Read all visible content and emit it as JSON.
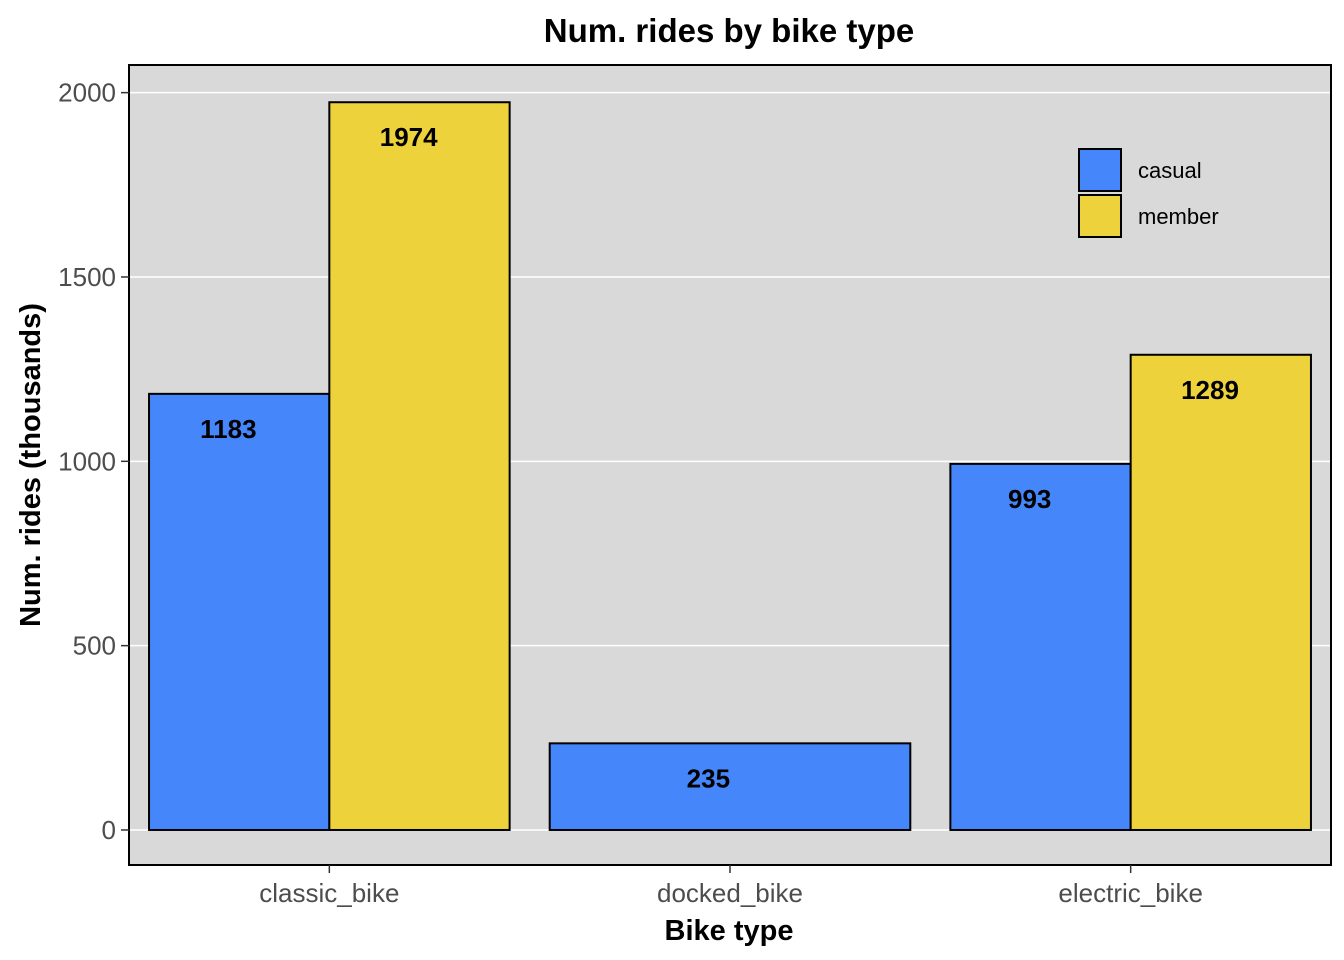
{
  "chart_data": {
    "type": "bar",
    "title": "Num. rides by bike type",
    "xlabel": "Bike type",
    "ylabel": "Num. rides (thousands)",
    "categories": [
      "classic_bike",
      "docked_bike",
      "electric_bike"
    ],
    "series": [
      {
        "name": "casual",
        "color": "#4587fb",
        "values": [
          1183,
          235,
          993
        ]
      },
      {
        "name": "member",
        "color": "#eed23b",
        "values": [
          1974,
          null,
          1289
        ]
      }
    ],
    "data_labels": [
      {
        "category": "classic_bike",
        "series": "casual",
        "text": "1183"
      },
      {
        "category": "classic_bike",
        "series": "member",
        "text": "1974"
      },
      {
        "category": "docked_bike",
        "series": "casual",
        "text": "235"
      },
      {
        "category": "electric_bike",
        "series": "casual",
        "text": "993"
      },
      {
        "category": "electric_bike",
        "series": "member",
        "text": "1289"
      }
    ],
    "yticks": [
      0,
      500,
      1000,
      1500,
      2000
    ],
    "ylim": [
      -95,
      2075
    ],
    "grid": true,
    "panel_background": "#d9d9d9",
    "legend_position": "top-right"
  }
}
